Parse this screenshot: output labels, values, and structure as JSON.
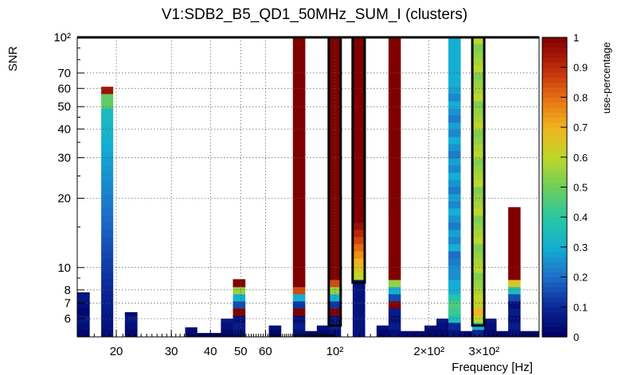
{
  "chart_data": {
    "type": "heatmap",
    "title": "V1:SDB2_B5_QD1_50MHz_SUM_I (clusters)",
    "xlabel": "Frequency [Hz]",
    "ylabel": "SNR",
    "zlabel": "use-percentage",
    "x_scale": "log",
    "y_scale": "log",
    "xlim": [
      15,
      450
    ],
    "ylim": [
      5,
      100
    ],
    "zlim": [
      0,
      1
    ],
    "grid": true,
    "x_tick_labels": [
      {
        "value": 20,
        "label": "20"
      },
      {
        "value": 30,
        "label": "30"
      },
      {
        "value": 40,
        "label": "40"
      },
      {
        "value": 50,
        "label": "50"
      },
      {
        "value": 60,
        "label": "60"
      },
      {
        "value": 100,
        "label": "10²"
      },
      {
        "value": 200,
        "label": "2×10²"
      },
      {
        "value": 300,
        "label": "3×10²"
      }
    ],
    "y_tick_labels": [
      {
        "value": 6,
        "label": "6"
      },
      {
        "value": 7,
        "label": "7"
      },
      {
        "value": 8,
        "label": "8"
      },
      {
        "value": 10,
        "label": "10"
      },
      {
        "value": 20,
        "label": "20"
      },
      {
        "value": 30,
        "label": "30"
      },
      {
        "value": 40,
        "label": "40"
      },
      {
        "value": 50,
        "label": "50"
      },
      {
        "value": 60,
        "label": "60"
      },
      {
        "value": 70,
        "label": "70"
      },
      {
        "value": 100,
        "label": "10²"
      }
    ],
    "colorbar_ticks": [
      {
        "value": 0,
        "label": "0"
      },
      {
        "value": 0.1,
        "label": "0.1"
      },
      {
        "value": 0.2,
        "label": "0.2"
      },
      {
        "value": 0.3,
        "label": "0.3"
      },
      {
        "value": 0.4,
        "label": "0.4"
      },
      {
        "value": 0.5,
        "label": "0.5"
      },
      {
        "value": 0.6,
        "label": "0.6"
      },
      {
        "value": 0.7,
        "label": "0.7"
      },
      {
        "value": 0.8,
        "label": "0.8"
      },
      {
        "value": 0.9,
        "label": "0.9"
      },
      {
        "value": 1,
        "label": "1"
      }
    ],
    "columns": [
      {
        "f0": 15.0,
        "f1": 16.4,
        "top": 7.8,
        "pattern": "navy"
      },
      {
        "f0": 16.4,
        "f1": 17.9,
        "top": 5.0,
        "pattern": "navy"
      },
      {
        "f0": 17.9,
        "f1": 19.5,
        "top": 61,
        "pattern": "ramp_jet",
        "peak": 0.35
      },
      {
        "f0": 19.5,
        "f1": 21.3,
        "top": 5.0,
        "pattern": "navy"
      },
      {
        "f0": 21.3,
        "f1": 23.3,
        "top": 6.4,
        "pattern": "navy"
      },
      {
        "f0": 23.3,
        "f1": 25.5,
        "top": 5.0,
        "pattern": "navy"
      },
      {
        "f0": 25.5,
        "f1": 27.8,
        "top": 4.85,
        "pattern": "navy"
      },
      {
        "f0": 27.8,
        "f1": 30.4,
        "top": 4.85,
        "pattern": "navy"
      },
      {
        "f0": 30.4,
        "f1": 33.2,
        "top": 4.85,
        "pattern": "navy"
      },
      {
        "f0": 33.2,
        "f1": 36.2,
        "top": 5.5,
        "pattern": "navy"
      },
      {
        "f0": 36.2,
        "f1": 39.6,
        "top": 5.2,
        "pattern": "navy"
      },
      {
        "f0": 39.6,
        "f1": 43.2,
        "top": 5.2,
        "pattern": "navy"
      },
      {
        "f0": 43.2,
        "f1": 47.2,
        "top": 6.0,
        "pattern": "navy"
      },
      {
        "f0": 47.2,
        "f1": 51.6,
        "top": 8.9,
        "pattern": "spike",
        "base": 6.4,
        "tail": [
          0.55,
          0.3,
          0.15
        ]
      },
      {
        "f0": 51.6,
        "f1": 56.3,
        "top": 5.0,
        "pattern": "navy"
      },
      {
        "f0": 56.3,
        "f1": 61.5,
        "top": 5.0,
        "pattern": "navy"
      },
      {
        "f0": 61.5,
        "f1": 67.2,
        "top": 5.6,
        "pattern": "navy"
      },
      {
        "f0": 67.2,
        "f1": 73.4,
        "top": 5.0,
        "pattern": "navy"
      },
      {
        "f0": 73.4,
        "f1": 80.2,
        "top": 100,
        "pattern": "spike",
        "base": 6.4,
        "tail": [
          0.85,
          0.3,
          0.12
        ]
      },
      {
        "f0": 80.2,
        "f1": 87.6,
        "top": 5.3,
        "pattern": "navy"
      },
      {
        "f0": 87.6,
        "f1": 95.6,
        "top": 5.6,
        "pattern": "navy"
      },
      {
        "f0": 95.6,
        "f1": 104.4,
        "top": 100,
        "pattern": "spike",
        "base": 6.3,
        "tail": [
          0.85,
          0.55,
          0.3,
          0.12
        ]
      },
      {
        "f0": 104.4,
        "f1": 114.0,
        "top": 5.0,
        "pattern": "navy"
      },
      {
        "f0": 114.0,
        "f1": 124.6,
        "top": 100,
        "pattern": "ramp_hot",
        "base": 8.6
      },
      {
        "f0": 124.6,
        "f1": 136.0,
        "top": 5.0,
        "pattern": "navy"
      },
      {
        "f0": 136.0,
        "f1": 148.5,
        "top": 5.6,
        "pattern": "navy"
      },
      {
        "f0": 148.5,
        "f1": 162.2,
        "top": 100,
        "pattern": "spike",
        "base": 6.7,
        "tail": [
          0.55,
          0.3,
          0.15
        ]
      },
      {
        "f0": 162.2,
        "f1": 177.2,
        "top": 5.3,
        "pattern": "navy"
      },
      {
        "f0": 177.2,
        "f1": 193.5,
        "top": 5.3,
        "pattern": "navy"
      },
      {
        "f0": 193.5,
        "f1": 211.3,
        "top": 5.6,
        "pattern": "navy"
      },
      {
        "f0": 211.3,
        "f1": 230.8,
        "top": 6.0,
        "pattern": "navy"
      },
      {
        "f0": 230.8,
        "f1": 252.0,
        "top": 100,
        "pattern": "mixed_cyan"
      },
      {
        "f0": 252.0,
        "f1": 275.2,
        "top": 5.3,
        "pattern": "navy"
      },
      {
        "f0": 275.2,
        "f1": 300.5,
        "top": 100,
        "pattern": "mixed_green"
      },
      {
        "f0": 300.5,
        "f1": 328.2,
        "top": 6.0,
        "pattern": "navy"
      },
      {
        "f0": 328.2,
        "f1": 358.4,
        "top": 5.3,
        "pattern": "navy"
      },
      {
        "f0": 358.4,
        "f1": 391.4,
        "top": 18.3,
        "pattern": "spike",
        "base": 6.9,
        "tail": [
          0.65,
          0.35,
          0.15
        ]
      },
      {
        "f0": 391.4,
        "f1": 427.4,
        "top": 5.3,
        "pattern": "navy"
      },
      {
        "f0": 427.4,
        "f1": 450.0,
        "top": 5.3,
        "pattern": "navy"
      }
    ],
    "highlight_boxes": [
      {
        "f0": 95.6,
        "f1": 104.4,
        "snr0": 5.6,
        "snr1": 100
      },
      {
        "f0": 114.0,
        "f1": 124.6,
        "snr0": 8.6,
        "snr1": 100
      },
      {
        "f0": 275.2,
        "f1": 300.5,
        "snr0": 5.6,
        "snr1": 100
      }
    ]
  }
}
